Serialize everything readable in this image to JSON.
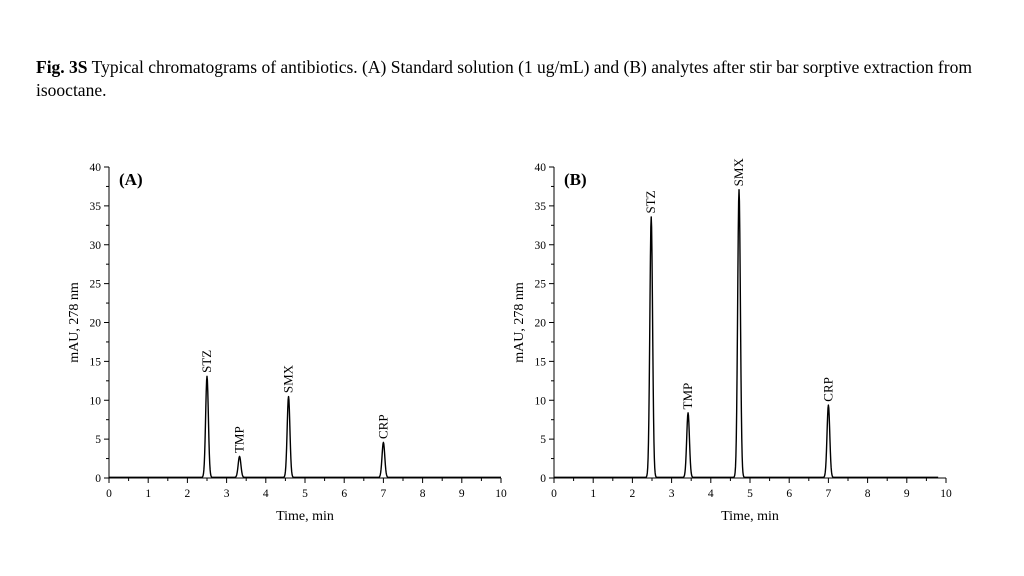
{
  "caption": {
    "figure_label": "Fig. 3S",
    "text": "Typical chromatograms of antibiotics. (A) Standard solution (1 ug/mL) and (B) analytes after stir bar sorptive extraction from isooctane."
  },
  "colors": {
    "trace": "#000000",
    "axis": "#000000",
    "background": "#ffffff"
  },
  "chart_data": [
    {
      "type": "line",
      "panel_label": "(A)",
      "xlabel": "Time, min",
      "ylabel": "mAU, 278 nm",
      "xlim": [
        0,
        10
      ],
      "ylim": [
        0,
        40
      ],
      "x_ticks": [
        "0",
        "1",
        "2",
        "3",
        "4",
        "5",
        "6",
        "7",
        "8",
        "9",
        "10"
      ],
      "y_ticks": [
        "0",
        "5",
        "10",
        "15",
        "20",
        "25",
        "30",
        "35",
        "40"
      ],
      "grid": false,
      "peaks": [
        {
          "label": "STZ",
          "time": 2.5,
          "height": 13.0
        },
        {
          "label": "TMP",
          "time": 3.33,
          "height": 2.7
        },
        {
          "label": "SMX",
          "time": 4.58,
          "height": 10.4
        },
        {
          "label": "CRP",
          "time": 7.0,
          "height": 4.5
        }
      ],
      "baseline_x_end": 10.0
    },
    {
      "type": "line",
      "panel_label": "(B)",
      "xlabel": "Time, min",
      "ylabel": "mAU, 278 nm",
      "xlim": [
        0,
        10
      ],
      "ylim": [
        0,
        40
      ],
      "x_ticks": [
        "0",
        "1",
        "2",
        "3",
        "4",
        "5",
        "6",
        "7",
        "8",
        "9",
        "10"
      ],
      "y_ticks": [
        "0",
        "5",
        "10",
        "15",
        "20",
        "25",
        "30",
        "35",
        "40"
      ],
      "grid": false,
      "peaks": [
        {
          "label": "STZ",
          "time": 2.48,
          "height": 33.5
        },
        {
          "label": "TMP",
          "time": 3.42,
          "height": 8.3
        },
        {
          "label": "SMX",
          "time": 4.72,
          "height": 37.0
        },
        {
          "label": "CRP",
          "time": 7.0,
          "height": 9.3
        }
      ],
      "baseline_x_end": 9.8
    }
  ]
}
